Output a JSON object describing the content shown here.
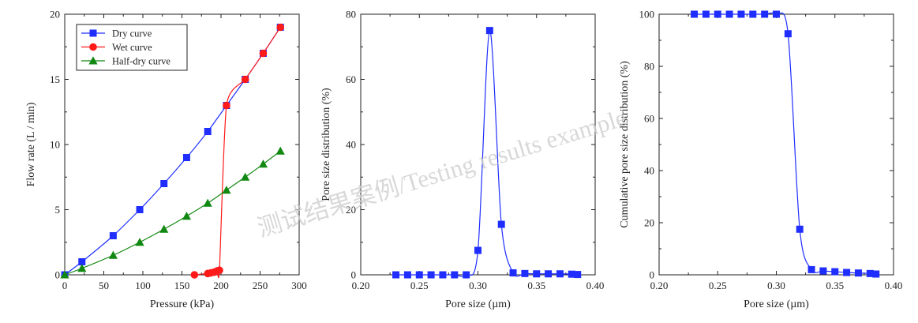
{
  "watermark": "测试结果案例/Testing results example",
  "colors": {
    "blue": "#1f2eff",
    "red": "#ff1a1a",
    "green": "#118811",
    "axis": "#222222"
  },
  "chart_data": [
    {
      "type": "line",
      "title": "",
      "xlabel": "Pressure (kPa)",
      "ylabel": "Flow rate (L / min)",
      "xlim": [
        0,
        300
      ],
      "ylim": [
        0,
        20
      ],
      "xticks": [
        0,
        50,
        100,
        150,
        200,
        250,
        300
      ],
      "yticks": [
        0,
        5,
        10,
        15,
        20
      ],
      "legend_position": "top-left",
      "series": [
        {
          "name": "Dry curve",
          "color": "#1f2eff",
          "marker": "square",
          "x": [
            0,
            22,
            62,
            96,
            127,
            156,
            183,
            207,
            231,
            254,
            276
          ],
          "y": [
            0,
            1,
            3,
            5,
            7,
            9,
            11,
            13,
            15,
            17,
            19
          ]
        },
        {
          "name": "Wet curve",
          "color": "#ff1a1a",
          "marker": "circle",
          "x": [
            166,
            183,
            187,
            191,
            195,
            198,
            207,
            231,
            254,
            276
          ],
          "y": [
            0,
            0.1,
            0.15,
            0.2,
            0.3,
            0.35,
            13,
            15,
            17,
            19
          ]
        },
        {
          "name": "Half-dry curve",
          "color": "#118811",
          "marker": "triangle",
          "x": [
            0,
            22,
            62,
            96,
            127,
            156,
            183,
            207,
            231,
            254,
            276
          ],
          "y": [
            0,
            0.5,
            1.5,
            2.5,
            3.5,
            4.5,
            5.5,
            6.5,
            7.5,
            8.5,
            9.5
          ]
        }
      ]
    },
    {
      "type": "line",
      "title": "",
      "xlabel": "Pore size (µm)",
      "ylabel": "Pore size distribution (%)",
      "xlim": [
        0.2,
        0.4
      ],
      "ylim": [
        0,
        80
      ],
      "xticks": [
        0.2,
        0.25,
        0.3,
        0.35,
        0.4
      ],
      "xtick_labels": [
        "0.20",
        "0.25",
        "0.30",
        "0.35",
        "0.40"
      ],
      "yticks": [
        0,
        20,
        40,
        60,
        80
      ],
      "series": [
        {
          "color": "#1f2eff",
          "marker": "square",
          "x": [
            0.23,
            0.24,
            0.25,
            0.26,
            0.27,
            0.28,
            0.29,
            0.3,
            0.31,
            0.32,
            0.33,
            0.34,
            0.35,
            0.36,
            0.37,
            0.38,
            0.385
          ],
          "y": [
            0,
            0,
            0,
            0,
            0,
            0,
            0,
            7.5,
            75,
            15.5,
            0.6,
            0.4,
            0.3,
            0.3,
            0.3,
            0.2,
            0.1
          ]
        }
      ]
    },
    {
      "type": "line",
      "title": "",
      "xlabel": "Pore size (µm)",
      "ylabel": "Cumulative pore size distribution (%)",
      "xlim": [
        0.2,
        0.4
      ],
      "ylim": [
        0,
        100
      ],
      "xticks": [
        0.2,
        0.25,
        0.3,
        0.35,
        0.4
      ],
      "xtick_labels": [
        "0.20",
        "0.25",
        "0.30",
        "0.35",
        "0.40"
      ],
      "yticks": [
        0,
        20,
        40,
        60,
        80,
        100
      ],
      "series": [
        {
          "color": "#1f2eff",
          "marker": "square",
          "x": [
            0.23,
            0.24,
            0.25,
            0.26,
            0.27,
            0.28,
            0.29,
            0.3,
            0.31,
            0.32,
            0.33,
            0.34,
            0.35,
            0.36,
            0.37,
            0.38,
            0.385
          ],
          "y": [
            100,
            100,
            100,
            100,
            100,
            100,
            100,
            100,
            92.5,
            17.5,
            2,
            1.5,
            1.2,
            0.9,
            0.7,
            0.5,
            0.3
          ]
        }
      ]
    }
  ]
}
